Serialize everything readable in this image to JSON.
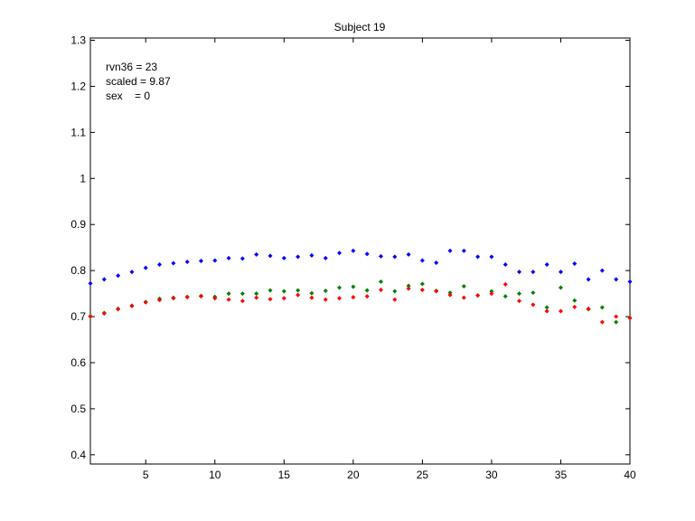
{
  "chart_data": {
    "type": "scatter",
    "title": "Subject 19",
    "xlabel": "",
    "ylabel": "",
    "xlim": [
      1,
      40
    ],
    "ylim": [
      0.38,
      1.305
    ],
    "x_ticks": [
      5,
      10,
      15,
      20,
      25,
      30,
      35,
      40
    ],
    "y_ticks": [
      0.4,
      0.5,
      0.6,
      0.7,
      0.8,
      0.9,
      1,
      1.1,
      1.2,
      1.3
    ],
    "y_tick_labels": [
      "0.4",
      "0.5",
      "0.6",
      "0.7",
      "0.8",
      "0.9",
      "1",
      "1.1",
      "1.2",
      "1.3"
    ],
    "grid": false,
    "annotations": [
      "rvn36 = 23",
      "scaled = 9.87",
      "sex    = 0"
    ],
    "x": [
      1,
      2,
      3,
      4,
      5,
      6,
      7,
      8,
      9,
      10,
      11,
      12,
      13,
      14,
      15,
      16,
      17,
      18,
      19,
      20,
      21,
      22,
      23,
      24,
      25,
      26,
      27,
      28,
      29,
      30,
      31,
      32,
      33,
      34,
      35,
      36,
      37,
      38,
      39,
      40
    ],
    "series": [
      {
        "color": "#0000ff",
        "values": [
          0.772,
          0.781,
          0.789,
          0.797,
          0.806,
          0.813,
          0.816,
          0.819,
          0.821,
          0.822,
          0.827,
          0.826,
          0.835,
          0.832,
          0.827,
          0.83,
          0.833,
          0.827,
          0.838,
          0.843,
          0.836,
          0.831,
          0.83,
          0.835,
          0.822,
          0.817,
          0.843,
          0.843,
          0.83,
          0.83,
          0.813,
          0.797,
          0.797,
          0.813,
          0.797,
          0.815,
          0.781,
          0.8,
          0.781,
          0.776
        ]
      },
      {
        "color": "#008000",
        "values": [
          0.701,
          0.708,
          0.717,
          0.724,
          0.732,
          0.739,
          0.741,
          0.743,
          0.745,
          0.743,
          0.75,
          0.75,
          0.75,
          0.757,
          0.755,
          0.757,
          0.751,
          0.756,
          0.763,
          0.765,
          0.757,
          0.776,
          0.755,
          0.767,
          0.771,
          0.756,
          0.752,
          0.766,
          0.746,
          0.755,
          0.744,
          0.75,
          0.752,
          0.72,
          0.763,
          0.735,
          0.716,
          0.72,
          0.688,
          0.697
        ]
      },
      {
        "color": "#ff0000",
        "values": [
          0.7,
          0.707,
          0.716,
          0.723,
          0.731,
          0.736,
          0.74,
          0.742,
          0.744,
          0.74,
          0.737,
          0.734,
          0.741,
          0.738,
          0.74,
          0.747,
          0.741,
          0.737,
          0.74,
          0.742,
          0.744,
          0.758,
          0.737,
          0.761,
          0.758,
          0.755,
          0.747,
          0.741,
          0.746,
          0.75,
          0.77,
          0.734,
          0.726,
          0.712,
          0.712,
          0.721,
          0.717,
          0.688,
          0.7,
          0.697
        ]
      }
    ]
  }
}
